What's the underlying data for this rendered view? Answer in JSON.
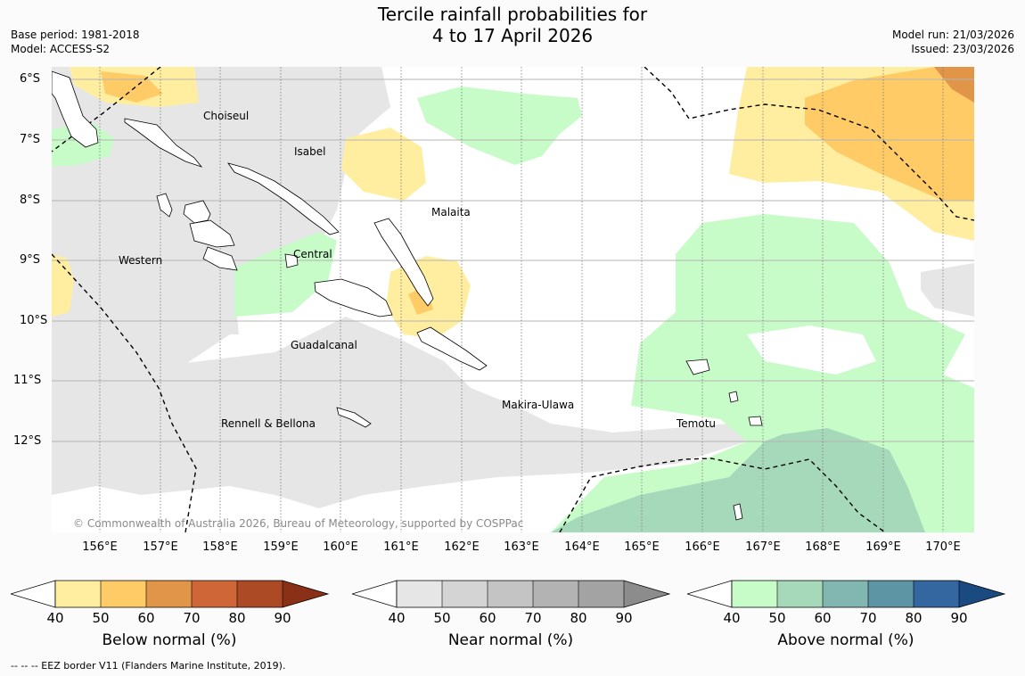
{
  "title": {
    "line1": "Tercile rainfall probabilities for",
    "line2": "4 to 17 April 2026"
  },
  "meta": {
    "base_period": "Base period: 1981-2018",
    "model": "Model: ACCESS-S2",
    "model_run": "Model run: 21/03/2026",
    "issued": "Issued: 23/03/2026"
  },
  "axes": {
    "lat_labels": [
      "6°S",
      "7°S",
      "8°S",
      "9°S",
      "10°S",
      "11°S",
      "12°S"
    ],
    "lon_labels": [
      "156°E",
      "157°E",
      "158°E",
      "159°E",
      "160°E",
      "161°E",
      "162°E",
      "163°E",
      "164°E",
      "165°E",
      "166°E",
      "167°E",
      "168°E",
      "169°E",
      "170°E"
    ]
  },
  "places": {
    "choiseul": "Choiseul",
    "isabel": "Isabel",
    "malaita": "Malaita",
    "western": "Western",
    "central": "Central",
    "guadalcanal": "Guadalcanal",
    "makira": "Makira-Ulawa",
    "temotu": "Temotu",
    "rennell": "Rennell & Bellona"
  },
  "copyright": "© Commonwealth of Australia 2026, Bureau of Meteorology, supported by COSPPac",
  "colorbars": {
    "below": {
      "title": "Below normal (%)",
      "ticks": [
        "40",
        "50",
        "60",
        "70",
        "80",
        "90"
      ],
      "colors": [
        "#ffeea0",
        "#ffcb66",
        "#e09548",
        "#cf6637",
        "#ad4a26",
        "#8a3016"
      ]
    },
    "near": {
      "title": "Near normal (%)",
      "ticks": [
        "40",
        "50",
        "60",
        "70",
        "80",
        "90"
      ],
      "colors": [
        "#e6e6e6",
        "#d4d4d4",
        "#c4c4c4",
        "#b3b3b3",
        "#a3a3a3",
        "#8c8c8c"
      ]
    },
    "above": {
      "title": "Above normal (%)",
      "ticks": [
        "40",
        "50",
        "60",
        "70",
        "80",
        "90"
      ],
      "colors": [
        "#c7fcc8",
        "#a5d9b9",
        "#82b7b1",
        "#5e95a5",
        "#3467a0",
        "#1a4a80"
      ]
    }
  },
  "footnote": "--  --  -- EEZ border V11 (Flanders Marine Institute, 2019)."
}
